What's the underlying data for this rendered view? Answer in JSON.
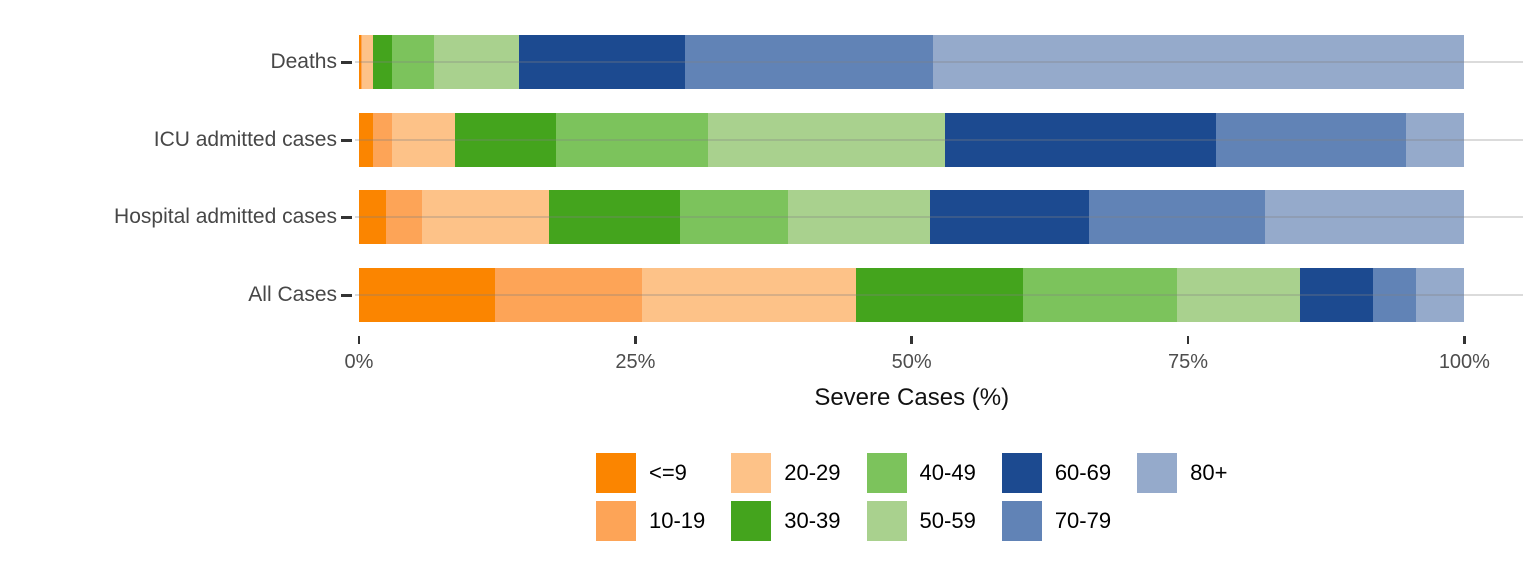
{
  "chart_data": {
    "type": "bar",
    "orientation": "horizontal",
    "stacked": true,
    "grid": "on",
    "categories": [
      "Deaths",
      "ICU admitted cases",
      "Hospital admitted cases",
      "All Cases"
    ],
    "xlabel": "Severe Cases (%)",
    "x_ticks": [
      "0%",
      "25%",
      "50%",
      "75%",
      "100%"
    ],
    "xlim": [
      0,
      100
    ],
    "legend_position": "bottom",
    "legend_rows": 2,
    "series": [
      {
        "name": "<=9",
        "color": "#FB8500",
        "values": [
          0.2,
          1.3,
          2.4,
          12.3
        ]
      },
      {
        "name": "10-19",
        "color": "#FDA457",
        "values": [
          0.1,
          1.7,
          3.3,
          13.3
        ]
      },
      {
        "name": "20-29",
        "color": "#FDC288",
        "values": [
          1.0,
          5.7,
          11.5,
          19.4
        ]
      },
      {
        "name": "30-39",
        "color": "#44A41D",
        "values": [
          1.7,
          9.1,
          11.8,
          15.1
        ]
      },
      {
        "name": "40-49",
        "color": "#7CC35C",
        "values": [
          3.8,
          13.8,
          9.8,
          13.9
        ]
      },
      {
        "name": "50-59",
        "color": "#A9D18E",
        "values": [
          7.7,
          21.4,
          12.9,
          11.1
        ]
      },
      {
        "name": "60-69",
        "color": "#1C4A90",
        "values": [
          15.0,
          24.5,
          14.3,
          6.6
        ]
      },
      {
        "name": "70-79",
        "color": "#6183B6",
        "values": [
          22.4,
          17.2,
          16.0,
          3.9
        ]
      },
      {
        "name": "80+",
        "color": "#95AACB",
        "values": [
          48.1,
          5.3,
          18.0,
          4.4
        ]
      }
    ]
  },
  "colors": {
    "gridline": "#dbdbdb",
    "tick": "#333333",
    "tick_label": "#4d4d4d",
    "category_label": "#474747",
    "axis_title": "#111111",
    "background": "#ffffff"
  }
}
